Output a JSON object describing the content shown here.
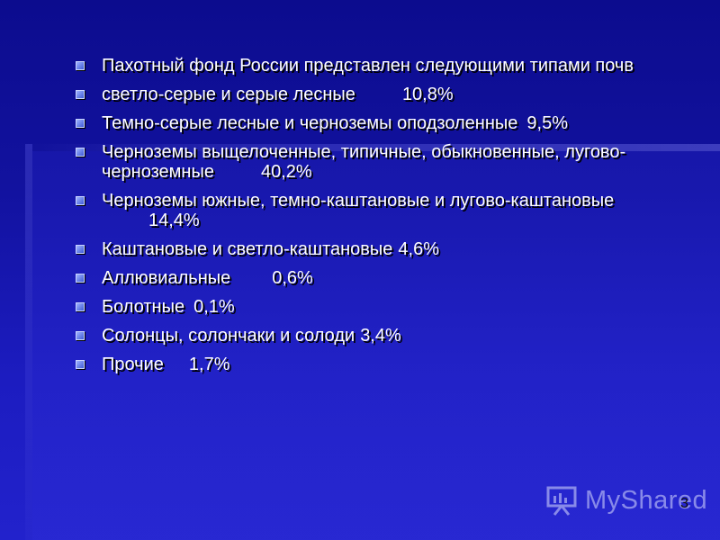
{
  "slide": {
    "items": [
      {
        "text": "Пахотный фонд России представлен следующими типами почв"
      },
      {
        "text": " светло-серые и серые лесные",
        "value": "10,8%"
      },
      {
        "text": "Темно-серые лесные и черноземы оподзоленные",
        "value": "9,5%"
      },
      {
        "text": "Черноземы выщелоченные, типичные, обыкновенные, лугово-черноземные",
        "value": "40,2%"
      },
      {
        "text": "Черноземы южные, темно-каштановые и лугово-каштановые",
        "value": "14,4%"
      },
      {
        "text": "Каштановые и светло-каштановые",
        "value": "4,6%"
      },
      {
        "text": "Аллювиальные",
        "value": "0,6%"
      },
      {
        "text": "Болотные",
        "value": "0,1%"
      },
      {
        "text": "Солонцы, солончаки и солоди",
        "value": "3,4%"
      },
      {
        "text": "Прочие",
        "value": "1,7%"
      }
    ],
    "page_number": "3"
  },
  "watermark": {
    "text": "MyShared",
    "icon": "presentation-board-icon"
  },
  "colors": {
    "background": "#12129f",
    "text": "#ffffff",
    "bullet": "#6f86f0"
  }
}
